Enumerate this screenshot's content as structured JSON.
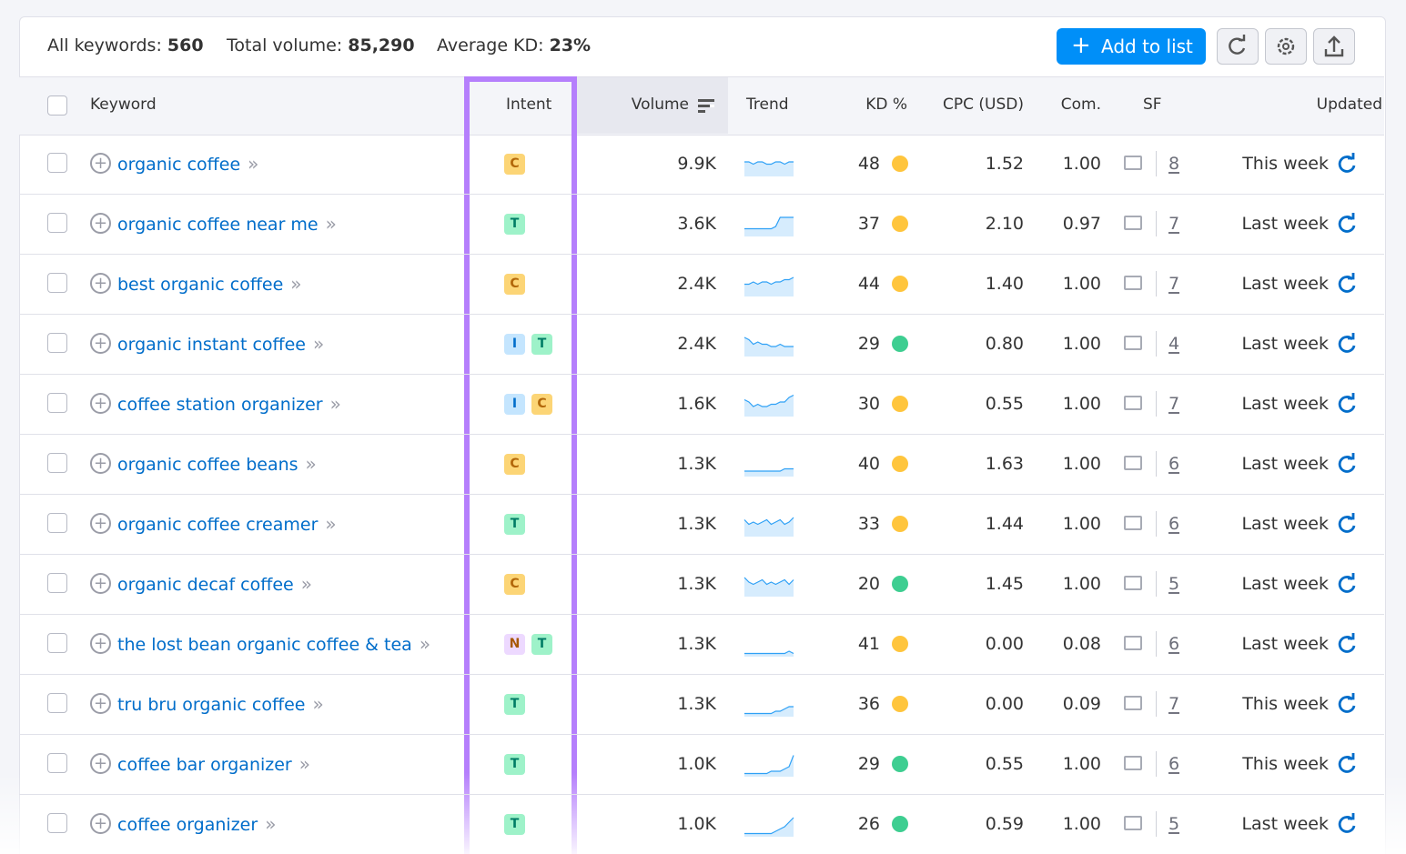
{
  "summary": [
    {
      "label": "All keywords:",
      "value": "560"
    },
    {
      "label": "Total volume:",
      "value": "85,290"
    },
    {
      "label": "Average KD:",
      "value": "23%"
    }
  ],
  "toolbar": {
    "add_button": "Add to list"
  },
  "intent_colors": {
    "C": "#fcd576",
    "T": "#9ef2c9",
    "I": "#c4e5fe",
    "N": "#edd9ff"
  },
  "intent_text_colors": {
    "C": "#b2670a",
    "T": "#007c65",
    "I": "#006dca",
    "N": "#a75800"
  },
  "table": {
    "headers": {
      "keyword": "Keyword",
      "intent": "Intent",
      "volume": "Volume",
      "trend": "Trend",
      "kd": "KD %",
      "cpc": "CPC (USD)",
      "com": "Com.",
      "sf": "SF",
      "updated": "Updated"
    },
    "rows": [
      {
        "keyword": "organic coffee",
        "intent": [
          "C"
        ],
        "volume": "9.9K",
        "trend": [
          6,
          6,
          5,
          6,
          6,
          5,
          5,
          6,
          6,
          5,
          6,
          6
        ],
        "kd": "48",
        "kd_color": "#ffc53d",
        "cpc": "1.52",
        "com": "1.00",
        "sf": "8",
        "updated": "This week"
      },
      {
        "keyword": "organic coffee near me",
        "intent": [
          "T"
        ],
        "volume": "3.6K",
        "trend": [
          3,
          3,
          3,
          3,
          3,
          3,
          3,
          4,
          8,
          8,
          8,
          8
        ],
        "kd": "37",
        "kd_color": "#ffc53d",
        "cpc": "2.10",
        "com": "0.97",
        "sf": "7",
        "updated": "Last week"
      },
      {
        "keyword": "best organic coffee",
        "intent": [
          "C"
        ],
        "volume": "2.4K",
        "trend": [
          5,
          5,
          6,
          5,
          6,
          6,
          5,
          6,
          6,
          7,
          7,
          8
        ],
        "kd": "44",
        "kd_color": "#ffc53d",
        "cpc": "1.40",
        "com": "1.00",
        "sf": "7",
        "updated": "Last week"
      },
      {
        "keyword": "organic instant coffee",
        "intent": [
          "I",
          "T"
        ],
        "volume": "2.4K",
        "trend": [
          8,
          7,
          5,
          6,
          5,
          5,
          4,
          4,
          5,
          4,
          4,
          4
        ],
        "kd": "29",
        "kd_color": "#3ece91",
        "cpc": "0.80",
        "com": "1.00",
        "sf": "4",
        "updated": "Last week"
      },
      {
        "keyword": "coffee station organizer",
        "intent": [
          "I",
          "C"
        ],
        "volume": "1.6K",
        "trend": [
          7,
          6,
          4,
          5,
          4,
          4,
          5,
          5,
          6,
          6,
          8,
          9
        ],
        "kd": "30",
        "kd_color": "#ffc53d",
        "cpc": "0.55",
        "com": "1.00",
        "sf": "7",
        "updated": "Last week"
      },
      {
        "keyword": "organic coffee beans",
        "intent": [
          "C"
        ],
        "volume": "1.3K",
        "trend": [
          2,
          2,
          2,
          2,
          2,
          2,
          2,
          2,
          2,
          3,
          3,
          3
        ],
        "kd": "40",
        "kd_color": "#ffc53d",
        "cpc": "1.63",
        "com": "1.00",
        "sf": "6",
        "updated": "Last week"
      },
      {
        "keyword": "organic coffee creamer",
        "intent": [
          "T"
        ],
        "volume": "1.3K",
        "trend": [
          7,
          5,
          6,
          5,
          6,
          7,
          5,
          6,
          7,
          5,
          6,
          8
        ],
        "kd": "33",
        "kd_color": "#ffc53d",
        "cpc": "1.44",
        "com": "1.00",
        "sf": "6",
        "updated": "Last week"
      },
      {
        "keyword": "organic decaf coffee",
        "intent": [
          "C"
        ],
        "volume": "1.3K",
        "trend": [
          8,
          6,
          5,
          6,
          7,
          5,
          6,
          5,
          6,
          7,
          5,
          7
        ],
        "kd": "20",
        "kd_color": "#3ece91",
        "cpc": "1.45",
        "com": "1.00",
        "sf": "5",
        "updated": "Last week"
      },
      {
        "keyword": "the lost bean organic coffee & tea",
        "intent": [
          "N",
          "T"
        ],
        "volume": "1.3K",
        "trend": [
          1,
          1,
          1,
          1,
          1,
          1,
          1,
          1,
          1,
          1,
          2,
          1
        ],
        "kd": "41",
        "kd_color": "#ffc53d",
        "cpc": "0.00",
        "com": "0.08",
        "sf": "6",
        "updated": "Last week"
      },
      {
        "keyword": "tru bru organic coffee",
        "intent": [
          "T"
        ],
        "volume": "1.3K",
        "trend": [
          1,
          1,
          1,
          1,
          1,
          1,
          1,
          2,
          2,
          3,
          4,
          4
        ],
        "kd": "36",
        "kd_color": "#ffc53d",
        "cpc": "0.00",
        "com": "0.09",
        "sf": "7",
        "updated": "This week"
      },
      {
        "keyword": "coffee bar organizer",
        "intent": [
          "T"
        ],
        "volume": "1.0K",
        "trend": [
          1,
          1,
          1,
          1,
          1,
          1,
          2,
          2,
          2,
          3,
          4,
          9
        ],
        "kd": "29",
        "kd_color": "#3ece91",
        "cpc": "0.55",
        "com": "1.00",
        "sf": "6",
        "updated": "This week"
      },
      {
        "keyword": "coffee organizer",
        "intent": [
          "T"
        ],
        "volume": "1.0K",
        "trend": [
          1,
          1,
          1,
          1,
          1,
          1,
          1,
          2,
          3,
          4,
          6,
          8
        ],
        "kd": "26",
        "kd_color": "#3ece91",
        "cpc": "0.59",
        "com": "1.00",
        "sf": "5",
        "updated": "Last week"
      }
    ]
  }
}
